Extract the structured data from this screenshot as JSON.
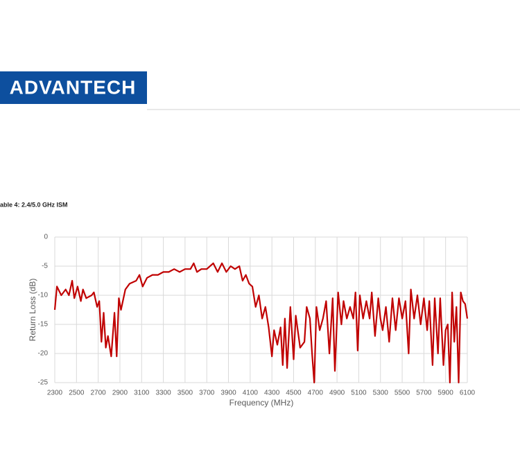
{
  "header": {
    "logo": "ADVANTECH"
  },
  "caption": "able 4: 2.4/5.0 GHz ISM",
  "chart_data": {
    "type": "line",
    "xlabel": "Frequency (MHz)",
    "ylabel": "Return Loss (dB)",
    "color": "#c00000",
    "grid": true,
    "xlim": [
      2300,
      6100
    ],
    "xticks": [
      2300,
      2500,
      2700,
      2900,
      3100,
      3300,
      3500,
      3700,
      3900,
      4100,
      4300,
      4500,
      4700,
      4900,
      5100,
      5300,
      5500,
      5700,
      5900,
      6100
    ],
    "ylim": [
      -25,
      0
    ],
    "yticks": [
      0,
      -5,
      -10,
      -15,
      -20,
      -25
    ],
    "x": [
      2300,
      2320,
      2360,
      2400,
      2430,
      2460,
      2480,
      2510,
      2540,
      2560,
      2590,
      2640,
      2660,
      2690,
      2710,
      2730,
      2750,
      2770,
      2790,
      2820,
      2850,
      2870,
      2890,
      2910,
      2950,
      2990,
      3050,
      3080,
      3110,
      3150,
      3200,
      3250,
      3300,
      3350,
      3400,
      3450,
      3500,
      3550,
      3580,
      3610,
      3650,
      3700,
      3730,
      3760,
      3800,
      3840,
      3880,
      3920,
      3960,
      4000,
      4030,
      4060,
      4090,
      4120,
      4150,
      4180,
      4210,
      4240,
      4270,
      4300,
      4320,
      4350,
      4380,
      4400,
      4420,
      4440,
      4470,
      4500,
      4520,
      4560,
      4600,
      4620,
      4650,
      4670,
      4690,
      4710,
      4740,
      4770,
      4800,
      4830,
      4860,
      4880,
      4910,
      4940,
      4960,
      4990,
      5020,
      5050,
      5070,
      5090,
      5110,
      5140,
      5170,
      5200,
      5220,
      5250,
      5280,
      5300,
      5320,
      5350,
      5380,
      5410,
      5440,
      5470,
      5500,
      5530,
      5560,
      5580,
      5610,
      5640,
      5670,
      5700,
      5730,
      5750,
      5780,
      5800,
      5830,
      5850,
      5880,
      5900,
      5920,
      5940,
      5960,
      5980,
      6000,
      6020,
      6040,
      6060,
      6080,
      6100
    ],
    "values": [
      -12.5,
      -8.5,
      -10,
      -9,
      -10,
      -7.5,
      -10.5,
      -8.5,
      -11,
      -9,
      -10.5,
      -10,
      -9.5,
      -12,
      -11,
      -18,
      -13,
      -19,
      -17,
      -20.5,
      -13,
      -20.5,
      -10.5,
      -12.5,
      -9,
      -8,
      -7.5,
      -6.5,
      -8.5,
      -7,
      -6.5,
      -6.5,
      -6,
      -6,
      -5.5,
      -6,
      -5.5,
      -5.5,
      -4.5,
      -6,
      -5.5,
      -5.5,
      -5,
      -4.5,
      -6,
      -4.5,
      -6,
      -5,
      -5.5,
      -5,
      -7.5,
      -6.5,
      -8,
      -8.5,
      -12,
      -10,
      -14,
      -12,
      -15.5,
      -20.5,
      -16,
      -18.5,
      -15.5,
      -22,
      -14,
      -22.5,
      -12,
      -21,
      -13.5,
      -19,
      -18,
      -12,
      -14,
      -20,
      -25,
      -12,
      -16,
      -14,
      -11,
      -20,
      -10.5,
      -23,
      -9.5,
      -15,
      -11,
      -14,
      -12,
      -14,
      -9.5,
      -19.5,
      -10,
      -14,
      -11,
      -14,
      -9.5,
      -17,
      -10.5,
      -14,
      -16,
      -12,
      -18,
      -10.5,
      -16,
      -10.5,
      -14,
      -11,
      -20,
      -9,
      -14,
      -10,
      -15,
      -10.5,
      -16,
      -11,
      -22,
      -10.5,
      -20,
      -10.5,
      -22,
      -16,
      -15,
      -25,
      -9.5,
      -18,
      -12,
      -25,
      -9.5,
      -11,
      -11.5,
      -14
    ]
  }
}
